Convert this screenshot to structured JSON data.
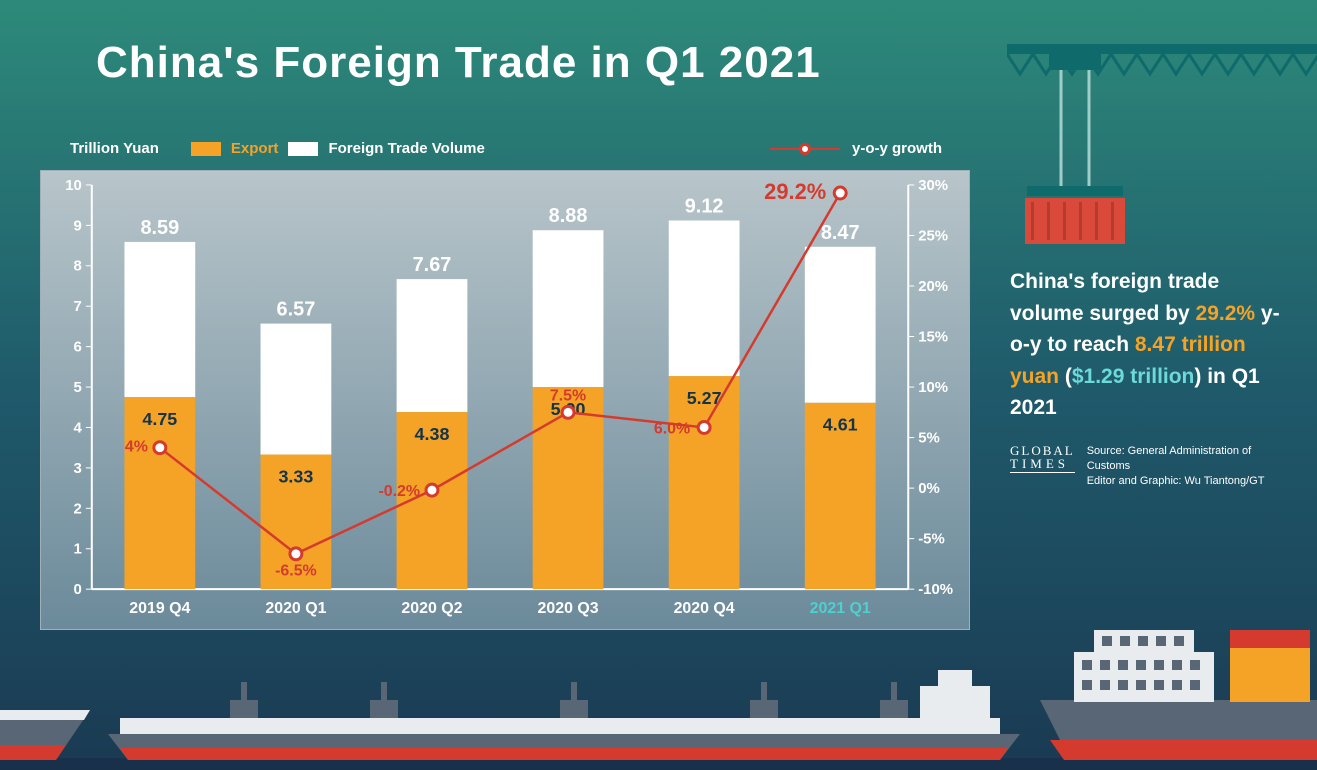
{
  "title": "China's Foreign Trade in Q1 2021",
  "legend": {
    "unit_label": "Trillion Yuan",
    "export_label": "Export",
    "export_color": "#f4a326",
    "volume_label": "Foreign Trade Volume",
    "volume_color": "#ffffff",
    "growth_label": "y-o-y growth",
    "line_color": "#d43b2e"
  },
  "chart": {
    "type": "stacked-bar-with-line",
    "categories": [
      "2019 Q4",
      "2020 Q1",
      "2020 Q2",
      "2020 Q3",
      "2020 Q4",
      "2021 Q1"
    ],
    "highlight_category_index": 5,
    "highlight_category_color": "#4dd0d0",
    "export_values": [
      4.75,
      3.33,
      4.38,
      5.0,
      5.27,
      4.61
    ],
    "volume_values": [
      8.59,
      6.57,
      7.67,
      8.88,
      9.12,
      8.47
    ],
    "growth_values": [
      4,
      -6.5,
      -0.2,
      7.5,
      6.0,
      29.2
    ],
    "growth_labels": [
      "4%",
      "-6.5%",
      "-0.2%",
      "7.5%",
      "6.0%",
      "29.2%"
    ],
    "export_color": "#f4a326",
    "volume_color": "#ffffff",
    "line_color": "#d43b2e",
    "export_label_color": "#153448",
    "volume_label_color": "#ffffff",
    "growth_label_color": "#d43b2e",
    "growth_highlight_color": "#d43b2e",
    "left_axis": {
      "min": 0,
      "max": 10,
      "step": 1,
      "color": "#ffffff"
    },
    "right_axis": {
      "min": -10,
      "max": 30,
      "step": 5,
      "color": "#ffffff",
      "suffix": "%"
    },
    "bar_width_ratio": 0.52,
    "axis_font_size": 15,
    "value_font_size": 18,
    "category_font_size": 16,
    "grid_color": "#a8b8c0",
    "background_top": "#b8c5ca",
    "background_bottom": "#6b8a9a"
  },
  "summary": {
    "parts": [
      {
        "text": "China's foreign trade volume surged by ",
        "color": "#ffffff"
      },
      {
        "text": "29.2%",
        "color": "#f4a326"
      },
      {
        "text": " y-o-y to reach ",
        "color": "#ffffff"
      },
      {
        "text": "8.47 trillion yuan",
        "color": "#f4a326"
      },
      {
        "text": " (",
        "color": "#ffffff"
      },
      {
        "text": "$1.29 trillion",
        "color": "#6dd9d9"
      },
      {
        "text": ") in Q1 2021",
        "color": "#ffffff"
      }
    ]
  },
  "attribution": {
    "logo_line1": "GLOBAL",
    "logo_line2": "TIMES",
    "source": "Source: General Administration of Customs",
    "editor": "Editor and Graphic: Wu Tiantong/GT"
  },
  "deco": {
    "crane_strut_color": "#0f6b6b",
    "crane_cable_color": "#a0ccc9",
    "container_color": "#d94a3a",
    "container_dark": "#b53b2d",
    "ship_hull": "#596675",
    "ship_red": "#d43b2e",
    "ship_yellow": "#f4a326",
    "ship_white": "#e8ecef",
    "sea_color": "#18304a"
  }
}
